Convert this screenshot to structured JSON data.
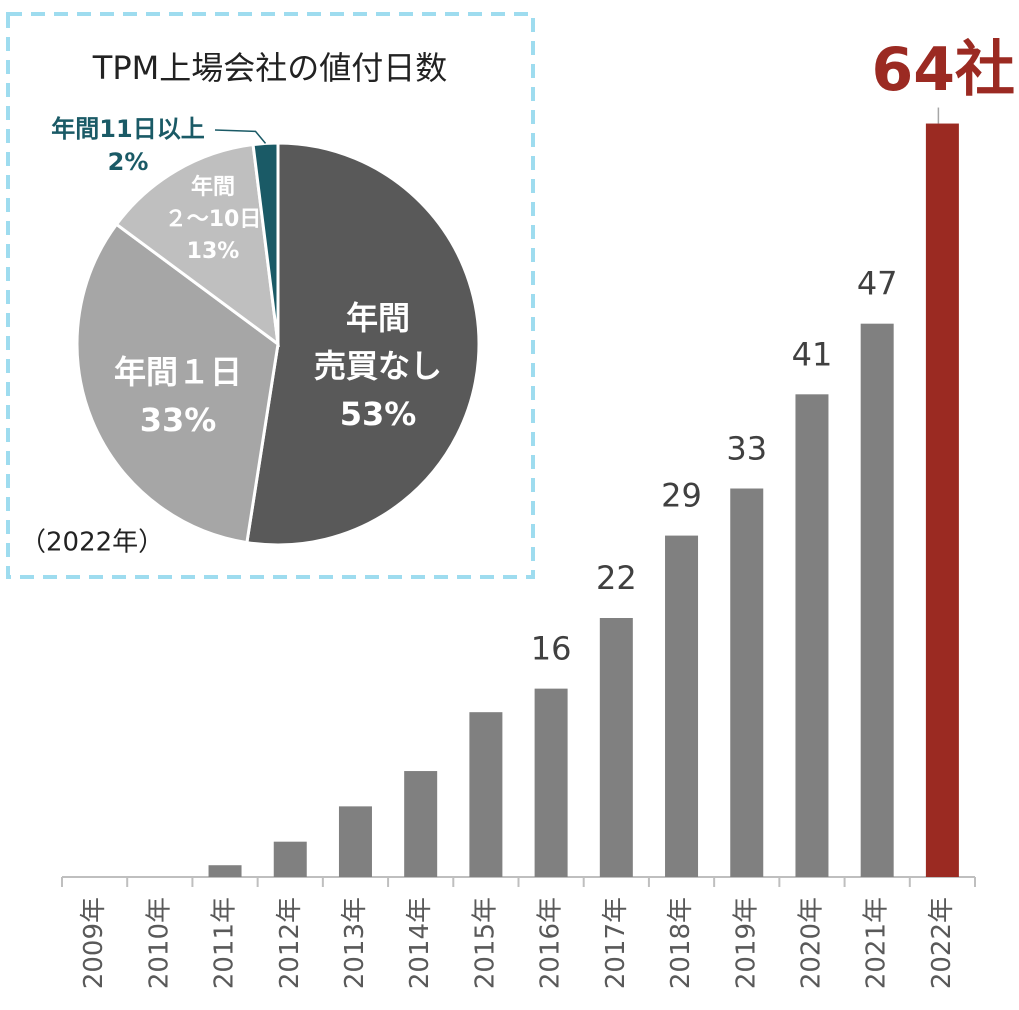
{
  "chart_data": [
    {
      "type": "bar",
      "categories": [
        "2009年",
        "2010年",
        "2011年",
        "2012年",
        "2013年",
        "2014年",
        "2015年",
        "2016年",
        "2017年",
        "2018年",
        "2019年",
        "2020年",
        "2021年",
        "2022年"
      ],
      "values": [
        0,
        0,
        1,
        3,
        6,
        9,
        14,
        16,
        22,
        29,
        33,
        41,
        47,
        64
      ],
      "value_labels": [
        null,
        null,
        null,
        null,
        null,
        null,
        null,
        "16",
        "22",
        "29",
        "33",
        "41",
        "47",
        "64社"
      ],
      "colors": [
        "#808080",
        "#808080",
        "#808080",
        "#808080",
        "#808080",
        "#808080",
        "#808080",
        "#808080",
        "#808080",
        "#808080",
        "#808080",
        "#808080",
        "#808080",
        "#9b2a22"
      ],
      "ylim": [
        0,
        66
      ]
    },
    {
      "type": "pie",
      "title": "TPM上場会社の値付日数",
      "annotation": "（2022年）",
      "categories": [
        [
          "年間",
          "売買なし"
        ],
        [
          "年間１日"
        ],
        [
          "年間",
          "２～10日"
        ],
        [
          "年間11日以上"
        ]
      ],
      "values": [
        53,
        33,
        13,
        2
      ],
      "value_labels": [
        "53%",
        "33%",
        "13%",
        "2%"
      ],
      "colors": [
        "#595959",
        "#a6a6a6",
        "#bfbfbf",
        "#1a5a66"
      ]
    }
  ]
}
